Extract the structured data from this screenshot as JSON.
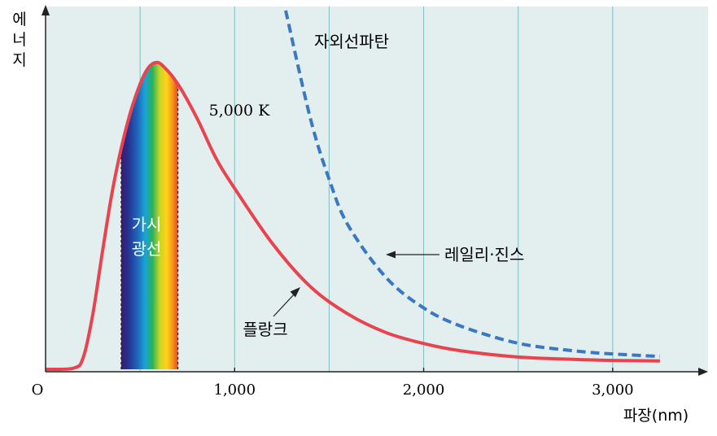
{
  "chart_data": {
    "type": "line",
    "ylabel": "에너지",
    "xlabel": "파장(nm)",
    "origin_label": "O",
    "xlim": [
      0,
      3400
    ],
    "x_ticks": [
      {
        "value": 1000,
        "label": "1,000"
      },
      {
        "value": 2000,
        "label": "2,000"
      },
      {
        "value": 3000,
        "label": "3,000"
      }
    ],
    "grid_x": [
      500,
      1000,
      1500,
      2000,
      2500,
      3000
    ],
    "grid": true,
    "visible_band": {
      "range": [
        400,
        700
      ],
      "label_line1": "가시",
      "label_line2": "광선"
    },
    "series": [
      {
        "name": "플랑크",
        "style": "solid",
        "color": "#e8434f",
        "points": [
          [
            0,
            0
          ],
          [
            150,
            0.004
          ],
          [
            200,
            0.04
          ],
          [
            250,
            0.18
          ],
          [
            300,
            0.38
          ],
          [
            350,
            0.57
          ],
          [
            400,
            0.72
          ],
          [
            450,
            0.84
          ],
          [
            500,
            0.93
          ],
          [
            540,
            0.98
          ],
          [
            580,
            1.0
          ],
          [
            620,
            0.99
          ],
          [
            700,
            0.93
          ],
          [
            800,
            0.82
          ],
          [
            900,
            0.69
          ],
          [
            1000,
            0.59
          ],
          [
            1200,
            0.41
          ],
          [
            1400,
            0.27
          ],
          [
            1600,
            0.18
          ],
          [
            1800,
            0.12
          ],
          [
            2000,
            0.084
          ],
          [
            2200,
            0.06
          ],
          [
            2500,
            0.04
          ],
          [
            2800,
            0.032
          ],
          [
            3000,
            0.029
          ],
          [
            3250,
            0.027
          ]
        ]
      },
      {
        "name": "레일리·진스",
        "style": "dashed",
        "color": "#3a78c2",
        "points": [
          [
            1270,
            1.17
          ],
          [
            1400,
            0.82
          ],
          [
            1500,
            0.62
          ],
          [
            1600,
            0.47
          ],
          [
            1800,
            0.3
          ],
          [
            2000,
            0.2
          ],
          [
            2200,
            0.14
          ],
          [
            2500,
            0.085
          ],
          [
            2800,
            0.06
          ],
          [
            3000,
            0.05
          ],
          [
            3250,
            0.042
          ]
        ]
      }
    ],
    "annotations": {
      "uv_catastrophe": "자외선파탄",
      "temperature": "5,000 K",
      "rayleigh_jeans_label": "레일리·진스",
      "planck_label": "플랑크"
    },
    "colors": {
      "plot_background": "#e3eeee",
      "grid": "#7fbfc3",
      "axis": "#222222"
    }
  }
}
